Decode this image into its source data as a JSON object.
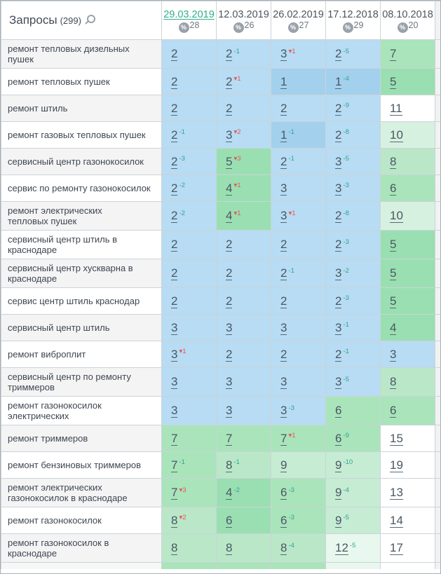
{
  "header": {
    "queries_label": "Запросы",
    "queries_count": "(299)",
    "search_icon": "magnifier",
    "columns": [
      {
        "date": "29.03.2019",
        "percent": "28",
        "selected": true
      },
      {
        "date": "12.03.2019",
        "percent": "26",
        "selected": false
      },
      {
        "date": "26.02.2019",
        "percent": "27",
        "selected": false
      },
      {
        "date": "17.12.2018",
        "percent": "29",
        "selected": false
      },
      {
        "date": "08.10.2018",
        "percent": "20",
        "selected": false
      }
    ]
  },
  "colors": {
    "b1": "#a3d0ed",
    "b2": "#b7dcf3",
    "g45": "#9adfb1",
    "g67": "#a9e4bb",
    "g8": "#b9e7c8",
    "g9": "#c6ecd4",
    "g10": "#d7f1e0",
    "g12": "#e9f8ef",
    "w": "#ffffff",
    "accent_green": "#2fae8c",
    "change_up_green": "#2ba695",
    "change_down_red": "#e25757"
  },
  "rows": [
    {
      "label": "ремонт тепловых дизельных пушек",
      "two_line": false,
      "cells": [
        {
          "v": "2",
          "chg": "",
          "cc": "",
          "bg": "b2"
        },
        {
          "v": "2",
          "chg": "-1",
          "cc": "green",
          "bg": "b2"
        },
        {
          "v": "3",
          "chg": "▾1",
          "cc": "red",
          "bg": "b2"
        },
        {
          "v": "2",
          "chg": "-5",
          "cc": "green",
          "bg": "b2"
        },
        {
          "v": "7",
          "chg": "",
          "cc": "",
          "bg": "g67"
        }
      ]
    },
    {
      "label": "ремонт тепловых пушек",
      "two_line": false,
      "cells": [
        {
          "v": "2",
          "chg": "",
          "cc": "",
          "bg": "b2"
        },
        {
          "v": "2",
          "chg": "▾1",
          "cc": "red",
          "bg": "b2"
        },
        {
          "v": "1",
          "chg": "",
          "cc": "",
          "bg": "b1"
        },
        {
          "v": "1",
          "chg": "-4",
          "cc": "green",
          "bg": "b1"
        },
        {
          "v": "5",
          "chg": "",
          "cc": "",
          "bg": "g45"
        }
      ]
    },
    {
      "label": "ремонт штиль",
      "two_line": false,
      "cells": [
        {
          "v": "2",
          "chg": "",
          "cc": "",
          "bg": "b2"
        },
        {
          "v": "2",
          "chg": "",
          "cc": "",
          "bg": "b2"
        },
        {
          "v": "2",
          "chg": "",
          "cc": "",
          "bg": "b2"
        },
        {
          "v": "2",
          "chg": "-9",
          "cc": "green",
          "bg": "b2"
        },
        {
          "v": "11",
          "chg": "",
          "cc": "",
          "bg": "w"
        }
      ]
    },
    {
      "label": "ремонт газовых тепловых пушек",
      "two_line": false,
      "cells": [
        {
          "v": "2",
          "chg": "-1",
          "cc": "green",
          "bg": "b2"
        },
        {
          "v": "3",
          "chg": "▾2",
          "cc": "red",
          "bg": "b2"
        },
        {
          "v": "1",
          "chg": "-1",
          "cc": "green",
          "bg": "b1"
        },
        {
          "v": "2",
          "chg": "-8",
          "cc": "green",
          "bg": "b2"
        },
        {
          "v": "10",
          "chg": "",
          "cc": "",
          "bg": "g10"
        }
      ]
    },
    {
      "label": "сервисный центр газонокосилок",
      "two_line": false,
      "cells": [
        {
          "v": "2",
          "chg": "-3",
          "cc": "green",
          "bg": "b2"
        },
        {
          "v": "5",
          "chg": "▾3",
          "cc": "red",
          "bg": "g45"
        },
        {
          "v": "2",
          "chg": "-1",
          "cc": "green",
          "bg": "b2"
        },
        {
          "v": "3",
          "chg": "-5",
          "cc": "green",
          "bg": "b2"
        },
        {
          "v": "8",
          "chg": "",
          "cc": "",
          "bg": "g8"
        }
      ]
    },
    {
      "label": "сервис по ремонту газонокосилок",
      "two_line": false,
      "cells": [
        {
          "v": "2",
          "chg": "-2",
          "cc": "green",
          "bg": "b2"
        },
        {
          "v": "4",
          "chg": "▾1",
          "cc": "red",
          "bg": "g45"
        },
        {
          "v": "3",
          "chg": "",
          "cc": "",
          "bg": "b2"
        },
        {
          "v": "3",
          "chg": "-3",
          "cc": "green",
          "bg": "b2"
        },
        {
          "v": "6",
          "chg": "",
          "cc": "",
          "bg": "g67"
        }
      ]
    },
    {
      "label": "ремонт электрических тепловых пушек",
      "two_line": true,
      "cells": [
        {
          "v": "2",
          "chg": "-2",
          "cc": "green",
          "bg": "b2"
        },
        {
          "v": "4",
          "chg": "▾1",
          "cc": "red",
          "bg": "g45"
        },
        {
          "v": "3",
          "chg": "▾1",
          "cc": "red",
          "bg": "b2"
        },
        {
          "v": "2",
          "chg": "-8",
          "cc": "green",
          "bg": "b2"
        },
        {
          "v": "10",
          "chg": "",
          "cc": "",
          "bg": "g10"
        }
      ]
    },
    {
      "label": "сервисный центр штиль в краснодаре",
      "two_line": true,
      "cells": [
        {
          "v": "2",
          "chg": "",
          "cc": "",
          "bg": "b2"
        },
        {
          "v": "2",
          "chg": "",
          "cc": "",
          "bg": "b2"
        },
        {
          "v": "2",
          "chg": "",
          "cc": "",
          "bg": "b2"
        },
        {
          "v": "2",
          "chg": "-3",
          "cc": "green",
          "bg": "b2"
        },
        {
          "v": "5",
          "chg": "",
          "cc": "",
          "bg": "g45"
        }
      ]
    },
    {
      "label": "сервисный центр хускварна в краснодаре",
      "two_line": true,
      "cells": [
        {
          "v": "2",
          "chg": "",
          "cc": "",
          "bg": "b2"
        },
        {
          "v": "2",
          "chg": "",
          "cc": "",
          "bg": "b2"
        },
        {
          "v": "2",
          "chg": "-1",
          "cc": "green",
          "bg": "b2"
        },
        {
          "v": "3",
          "chg": "-2",
          "cc": "green",
          "bg": "b2"
        },
        {
          "v": "5",
          "chg": "",
          "cc": "",
          "bg": "g45"
        }
      ]
    },
    {
      "label": "сервис центр штиль краснодар",
      "two_line": false,
      "cells": [
        {
          "v": "2",
          "chg": "",
          "cc": "",
          "bg": "b2"
        },
        {
          "v": "2",
          "chg": "",
          "cc": "",
          "bg": "b2"
        },
        {
          "v": "2",
          "chg": "",
          "cc": "",
          "bg": "b2"
        },
        {
          "v": "2",
          "chg": "-3",
          "cc": "green",
          "bg": "b2"
        },
        {
          "v": "5",
          "chg": "",
          "cc": "",
          "bg": "g45"
        }
      ]
    },
    {
      "label": "сервисный центр штиль",
      "two_line": false,
      "cells": [
        {
          "v": "3",
          "chg": "",
          "cc": "",
          "bg": "b2"
        },
        {
          "v": "3",
          "chg": "",
          "cc": "",
          "bg": "b2"
        },
        {
          "v": "3",
          "chg": "",
          "cc": "",
          "bg": "b2"
        },
        {
          "v": "3",
          "chg": "-1",
          "cc": "green",
          "bg": "b2"
        },
        {
          "v": "4",
          "chg": "",
          "cc": "",
          "bg": "g45"
        }
      ]
    },
    {
      "label": "ремонт виброплит",
      "two_line": false,
      "cells": [
        {
          "v": "3",
          "chg": "▾1",
          "cc": "red",
          "bg": "b2"
        },
        {
          "v": "2",
          "chg": "",
          "cc": "",
          "bg": "b2"
        },
        {
          "v": "2",
          "chg": "",
          "cc": "",
          "bg": "b2"
        },
        {
          "v": "2",
          "chg": "-1",
          "cc": "green",
          "bg": "b2"
        },
        {
          "v": "3",
          "chg": "",
          "cc": "",
          "bg": "b2"
        }
      ]
    },
    {
      "label": "сервисный центр по ремонту триммеров",
      "two_line": true,
      "cells": [
        {
          "v": "3",
          "chg": "",
          "cc": "",
          "bg": "b2"
        },
        {
          "v": "3",
          "chg": "",
          "cc": "",
          "bg": "b2"
        },
        {
          "v": "3",
          "chg": "",
          "cc": "",
          "bg": "b2"
        },
        {
          "v": "3",
          "chg": "-5",
          "cc": "green",
          "bg": "b2"
        },
        {
          "v": "8",
          "chg": "",
          "cc": "",
          "bg": "g8"
        }
      ]
    },
    {
      "label": "ремонт газонокосилок электрических",
      "two_line": true,
      "cells": [
        {
          "v": "3",
          "chg": "",
          "cc": "",
          "bg": "b2"
        },
        {
          "v": "3",
          "chg": "",
          "cc": "",
          "bg": "b2"
        },
        {
          "v": "3",
          "chg": "-3",
          "cc": "green",
          "bg": "b2"
        },
        {
          "v": "6",
          "chg": "",
          "cc": "",
          "bg": "g67"
        },
        {
          "v": "6",
          "chg": "",
          "cc": "",
          "bg": "g67"
        }
      ]
    },
    {
      "label": "ремонт триммеров",
      "two_line": false,
      "cells": [
        {
          "v": "7",
          "chg": "",
          "cc": "",
          "bg": "g67"
        },
        {
          "v": "7",
          "chg": "",
          "cc": "",
          "bg": "g67"
        },
        {
          "v": "7",
          "chg": "▾1",
          "cc": "red",
          "bg": "g67"
        },
        {
          "v": "6",
          "chg": "-9",
          "cc": "green",
          "bg": "g67"
        },
        {
          "v": "15",
          "chg": "",
          "cc": "",
          "bg": "w"
        }
      ]
    },
    {
      "label": "ремонт бензиновых триммеров",
      "two_line": false,
      "cells": [
        {
          "v": "7",
          "chg": "-1",
          "cc": "green",
          "bg": "g67"
        },
        {
          "v": "8",
          "chg": "-1",
          "cc": "green",
          "bg": "g8"
        },
        {
          "v": "9",
          "chg": "",
          "cc": "",
          "bg": "g9"
        },
        {
          "v": "9",
          "chg": "-10",
          "cc": "green",
          "bg": "g9"
        },
        {
          "v": "19",
          "chg": "",
          "cc": "",
          "bg": "w"
        }
      ]
    },
    {
      "label": "ремонт электрических газонокосилок в краснодаре",
      "two_line": true,
      "cells": [
        {
          "v": "7",
          "chg": "▾3",
          "cc": "red",
          "bg": "g67"
        },
        {
          "v": "4",
          "chg": "-2",
          "cc": "green",
          "bg": "g45"
        },
        {
          "v": "6",
          "chg": "-3",
          "cc": "green",
          "bg": "g67"
        },
        {
          "v": "9",
          "chg": "-4",
          "cc": "green",
          "bg": "g9"
        },
        {
          "v": "13",
          "chg": "",
          "cc": "",
          "bg": "w"
        }
      ]
    },
    {
      "label": "ремонт газонокосилок",
      "two_line": false,
      "cells": [
        {
          "v": "8",
          "chg": "▾2",
          "cc": "red",
          "bg": "g8"
        },
        {
          "v": "6",
          "chg": "",
          "cc": "",
          "bg": "g45"
        },
        {
          "v": "6",
          "chg": "-3",
          "cc": "green",
          "bg": "g67"
        },
        {
          "v": "9",
          "chg": "-5",
          "cc": "green",
          "bg": "g9"
        },
        {
          "v": "14",
          "chg": "",
          "cc": "",
          "bg": "w"
        }
      ]
    },
    {
      "label": "ремонт газонокосилок в краснодаре",
      "two_line": false,
      "cells": [
        {
          "v": "8",
          "chg": "",
          "cc": "",
          "bg": "g8"
        },
        {
          "v": "8",
          "chg": "",
          "cc": "",
          "bg": "g8"
        },
        {
          "v": "8",
          "chg": "-4",
          "cc": "green",
          "bg": "g8"
        },
        {
          "v": "12",
          "chg": "-5",
          "cc": "green",
          "bg": "g12"
        },
        {
          "v": "17",
          "chg": "",
          "cc": "",
          "bg": "w"
        }
      ]
    }
  ]
}
